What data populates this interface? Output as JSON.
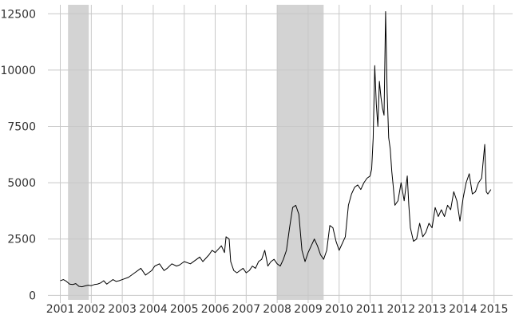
{
  "chart_data": {
    "type": "line",
    "title": "",
    "xlabel": "",
    "ylabel": "",
    "xlim": [
      2000.6,
      2015.6
    ],
    "ylim": [
      -200,
      12900
    ],
    "grid": true,
    "legend": "none",
    "line_color": "#000000",
    "band_color": "#d3d3d3",
    "grid_color": "#c8c8c8",
    "x_ticks": [
      2001,
      2002,
      2003,
      2004,
      2005,
      2006,
      2007,
      2008,
      2009,
      2010,
      2011,
      2012,
      2013,
      2014,
      2015
    ],
    "x_tick_labels": [
      "2001",
      "2002",
      "2003",
      "2004",
      "2005",
      "2006",
      "2007",
      "2008",
      "2009",
      "2010",
      "2011",
      "2012",
      "2013",
      "2014",
      "2015"
    ],
    "y_ticks": [
      0,
      2500,
      5000,
      7500,
      10000,
      12500
    ],
    "y_tick_labels": [
      "0",
      "2500",
      "5000",
      "7500",
      "10000",
      "12500"
    ],
    "shaded_periods": [
      {
        "start": 2001.25,
        "end": 2001.92
      },
      {
        "start": 2008.0,
        "end": 2009.5
      }
    ],
    "series": [
      {
        "x": [
          2001.0,
          2001.1,
          2001.2,
          2001.3,
          2001.4,
          2001.5,
          2001.6,
          2001.7,
          2001.8,
          2001.9,
          2002.0,
          2002.1,
          2002.2,
          2002.3,
          2002.4,
          2002.5,
          2002.6,
          2002.7,
          2002.8,
          2002.9,
          2003.0,
          2003.2,
          2003.4,
          2003.6,
          2003.75,
          2003.85,
          2003.95,
          2004.05,
          2004.2,
          2004.35,
          2004.45,
          2004.6,
          2004.75,
          2004.85,
          2005.0,
          2005.2,
          2005.4,
          2005.5,
          2005.6,
          2005.8,
          2005.9,
          2006.0,
          2006.2,
          2006.3,
          2006.35,
          2006.45,
          2006.5,
          2006.6,
          2006.7,
          2006.8,
          2006.9,
          2007.0,
          2007.1,
          2007.2,
          2007.3,
          2007.4,
          2007.5,
          2007.6,
          2007.7,
          2007.8,
          2007.9,
          2008.0,
          2008.1,
          2008.2,
          2008.3,
          2008.4,
          2008.5,
          2008.6,
          2008.7,
          2008.8,
          2008.9,
          2009.0,
          2009.1,
          2009.2,
          2009.3,
          2009.4,
          2009.5,
          2009.6,
          2009.7,
          2009.8,
          2009.9,
          2010.0,
          2010.1,
          2010.2,
          2010.3,
          2010.4,
          2010.5,
          2010.6,
          2010.7,
          2010.8,
          2010.9,
          2011.0,
          2011.05,
          2011.1,
          2011.15,
          2011.2,
          2011.25,
          2011.3,
          2011.35,
          2011.4,
          2011.45,
          2011.5,
          2011.55,
          2011.6,
          2011.65,
          2011.7,
          2011.75,
          2011.8,
          2011.9,
          2012.0,
          2012.1,
          2012.2,
          2012.25,
          2012.3,
          2012.4,
          2012.5,
          2012.6,
          2012.7,
          2012.8,
          2012.9,
          2013.0,
          2013.1,
          2013.2,
          2013.3,
          2013.4,
          2013.5,
          2013.6,
          2013.7,
          2013.8,
          2013.9,
          2014.0,
          2014.1,
          2014.2,
          2014.3,
          2014.4,
          2014.5,
          2014.6,
          2014.7,
          2014.75,
          2014.8,
          2014.9
        ],
        "values": [
          650,
          700,
          620,
          500,
          480,
          520,
          400,
          380,
          420,
          450,
          430,
          480,
          500,
          550,
          650,
          500,
          600,
          700,
          620,
          650,
          700,
          800,
          1000,
          1200,
          900,
          1000,
          1100,
          1300,
          1400,
          1100,
          1200,
          1400,
          1300,
          1350,
          1500,
          1400,
          1600,
          1700,
          1500,
          1800,
          2000,
          1900,
          2200,
          1900,
          2600,
          2500,
          1500,
          1100,
          1000,
          1100,
          1200,
          1000,
          1100,
          1300,
          1200,
          1500,
          1600,
          2000,
          1300,
          1500,
          1600,
          1400,
          1300,
          1600,
          2000,
          3000,
          3900,
          4000,
          3600,
          2000,
          1500,
          1900,
          2200,
          2500,
          2200,
          1800,
          1600,
          2000,
          3100,
          3000,
          2400,
          2000,
          2300,
          2600,
          4000,
          4500,
          4800,
          4900,
          4700,
          5000,
          5200,
          5300,
          5600,
          7000,
          10200,
          8500,
          7500,
          9500,
          8800,
          8300,
          8000,
          12600,
          9000,
          7000,
          6500,
          5500,
          4800,
          4000,
          4200,
          5000,
          4200,
          5300,
          4000,
          3000,
          2400,
          2500,
          3200,
          2600,
          2800,
          3200,
          3000,
          3900,
          3500,
          3800,
          3500,
          4000,
          3800,
          4600,
          4200,
          3300,
          4300,
          5000,
          5400,
          4500,
          4600,
          5000,
          5200,
          6700,
          4600,
          4500,
          4700
        ]
      }
    ]
  }
}
